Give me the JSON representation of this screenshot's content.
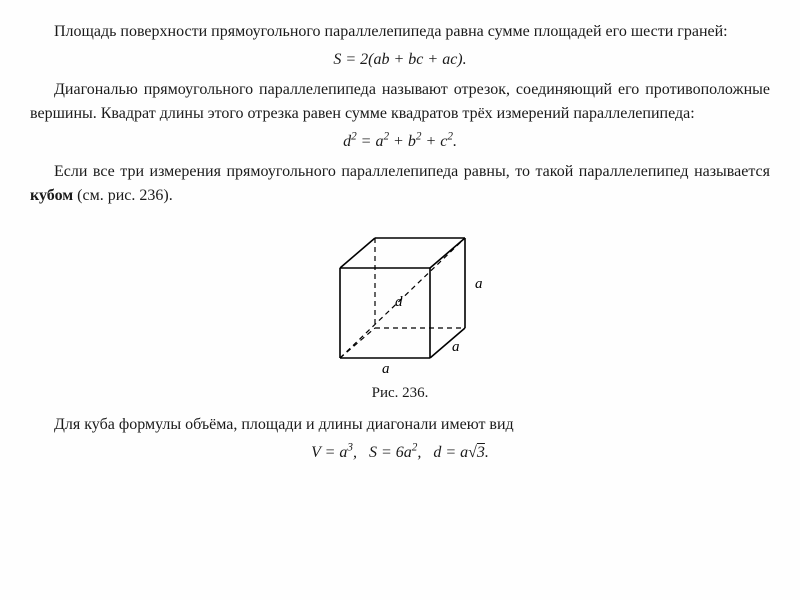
{
  "para1": "Площадь поверхности прямоугольного параллелепипеда равна сумме площадей его шести граней:",
  "formula1": "S = 2(ab + bc + ac).",
  "para2": "Диагональю прямоугольного параллелепипеда называют отрезок, соединяющий его противоположные вершины. Квадрат длины этого отрезка равен сумме квадратов трёх измерений параллелепипеда:",
  "formula2_html": "d<span class=\"sup\">2</span> = a<span class=\"sup\">2</span> + b<span class=\"sup\">2</span> + c<span class=\"sup\">2</span>.",
  "para3_prefix": "Если все три измерения прямоугольного параллелепи­педа равны, то такой параллелепипед называется ",
  "para3_bold": "кубом",
  "para3_suffix": " (см. рис. 236).",
  "figure": {
    "caption": "Рис. 236.",
    "labels": {
      "a": "a",
      "d": "d"
    },
    "colors": {
      "stroke": "#000000",
      "dash": "#000000",
      "text": "#000000",
      "bg": "#ffffff"
    },
    "stroke_width": 1.4,
    "dash_pattern": "5,4"
  },
  "para4": "Для куба формулы объёма, площади и длины диагонали имеют вид",
  "formula3_html": "V = a<span class=\"sup\">3</span>,&nbsp;&nbsp;&nbsp;S = 6a<span class=\"sup\">2</span>,&nbsp;&nbsp;&nbsp;d = a√<span style=\"text-decoration:overline;\">3</span>."
}
